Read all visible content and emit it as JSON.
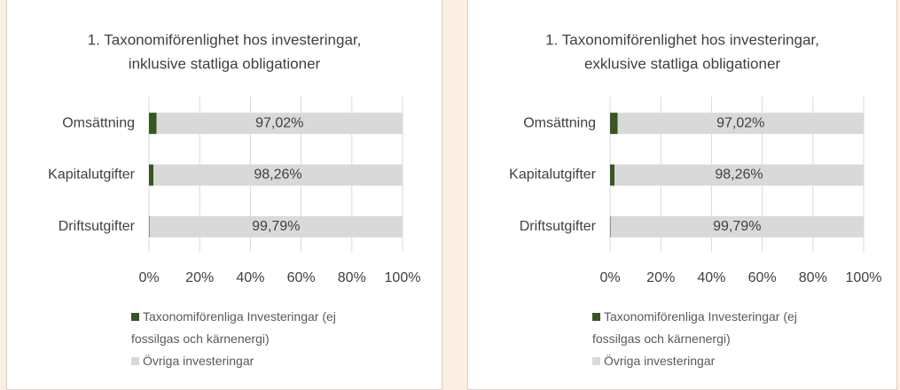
{
  "chart_data": [
    {
      "type": "bar",
      "orientation": "horizontal",
      "stacked": true,
      "title": [
        "1. Taxonomiförenlighet hos investeringar,",
        "inklusive statliga obligationer"
      ],
      "categories": [
        "Omsättning",
        "Kapitalutgifter",
        "Driftsutgifter"
      ],
      "series": [
        {
          "name": "Taxonomiförenliga Investeringar (ej fossilgas och kärnenergi)",
          "color": "#375623",
          "values": [
            2.98,
            1.74,
            0.21
          ]
        },
        {
          "name": "Övriga investeringar",
          "color": "#d9d9d9",
          "values": [
            97.02,
            98.26,
            99.79
          ],
          "value_labels": [
            "97,02%",
            "98,26%",
            "99,79%"
          ]
        }
      ],
      "xlim": [
        0,
        100
      ],
      "xticks": [
        {
          "value": 0,
          "label": "0%"
        },
        {
          "value": 20,
          "label": "20%"
        },
        {
          "value": 40,
          "label": "40%"
        },
        {
          "value": 60,
          "label": "60%"
        },
        {
          "value": 80,
          "label": "80%"
        },
        {
          "value": 100,
          "label": "100%"
        }
      ],
      "grid": true,
      "legend": "bottom"
    },
    {
      "type": "bar",
      "orientation": "horizontal",
      "stacked": true,
      "title": [
        "1. Taxonomiförenlighet hos investeringar,",
        "exklusive statliga obligationer"
      ],
      "categories": [
        "Omsättning",
        "Kapitalutgifter",
        "Driftsutgifter"
      ],
      "series": [
        {
          "name": "Taxonomiförenliga Investeringar (ej fossilgas och kärnenergi)",
          "color": "#375623",
          "values": [
            2.98,
            1.74,
            0.21
          ]
        },
        {
          "name": "Övriga investeringar",
          "color": "#d9d9d9",
          "values": [
            97.02,
            98.26,
            99.79
          ],
          "value_labels": [
            "97,02%",
            "98,26%",
            "99,79%"
          ]
        }
      ],
      "xlim": [
        0,
        100
      ],
      "xticks": [
        {
          "value": 0,
          "label": "0%"
        },
        {
          "value": 20,
          "label": "20%"
        },
        {
          "value": 40,
          "label": "40%"
        },
        {
          "value": 60,
          "label": "60%"
        },
        {
          "value": 80,
          "label": "80%"
        },
        {
          "value": 100,
          "label": "100%"
        }
      ],
      "grid": true,
      "legend": "bottom"
    }
  ]
}
